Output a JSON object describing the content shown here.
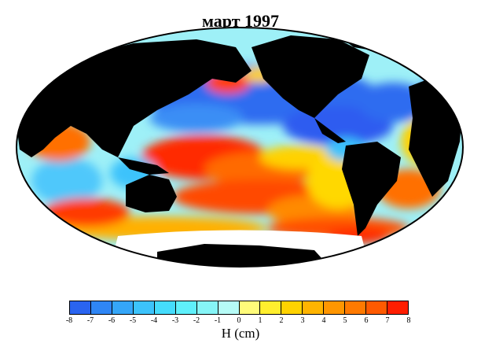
{
  "title": "март 1997",
  "colorbar": {
    "label": "H (cm)",
    "ticks": [
      "-8",
      "-7",
      "-6",
      "-5",
      "-4",
      "-3",
      "-2",
      "-1",
      "0",
      "1",
      "2",
      "3",
      "4",
      "5",
      "6",
      "7",
      "8"
    ],
    "colors": [
      "#2a64f0",
      "#2f86f5",
      "#35a6f8",
      "#3cc3fb",
      "#45dcfc",
      "#5ff0fb",
      "#86f5f7",
      "#b6fbf6",
      "#fffb7a",
      "#ffee2e",
      "#ffd200",
      "#ffb400",
      "#ff9600",
      "#ff7a00",
      "#ff5a00",
      "#ff1e00"
    ]
  },
  "map": {
    "colors": {
      "deep_blue": "#2f5cf0",
      "blue": "#3a8ef5",
      "cyan": "#52d6fb",
      "light_cyan": "#aef6f7",
      "yellow": "#fff25a",
      "orange": "#ffa000",
      "red": "#ff2a00",
      "land": "#000000",
      "ice": "#ffffff"
    }
  }
}
